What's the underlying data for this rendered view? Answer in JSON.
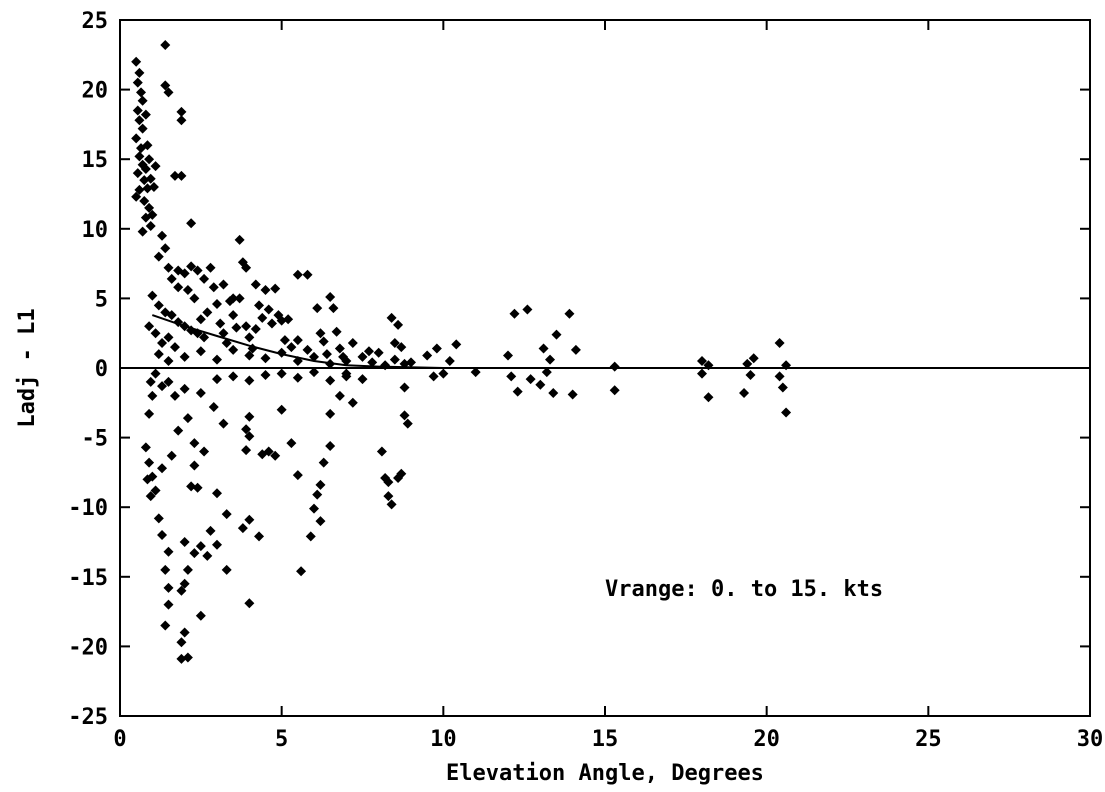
{
  "chart_data": {
    "type": "scatter",
    "title": "",
    "xlabel": "Elevation Angle, Degrees",
    "ylabel": "Ladj - L1",
    "xlim": [
      0,
      30
    ],
    "ylim": [
      -25,
      25
    ],
    "xticks": [
      0,
      5,
      10,
      15,
      20,
      25,
      30
    ],
    "yticks": [
      -25,
      -20,
      -15,
      -10,
      -5,
      0,
      5,
      10,
      15,
      20,
      25
    ],
    "grid": false,
    "annotation": "Vrange:  0. to 15. kts",
    "reference_line_y": 0,
    "trend_line": [
      [
        1.0,
        3.8
      ],
      [
        2.0,
        3.0
      ],
      [
        3.0,
        2.3
      ],
      [
        4.0,
        1.6
      ],
      [
        5.0,
        1.0
      ],
      [
        6.0,
        0.5
      ],
      [
        7.0,
        0.2
      ],
      [
        8.0,
        0.1
      ],
      [
        10.0,
        0.0
      ]
    ],
    "points": [
      [
        0.5,
        22.0
      ],
      [
        0.6,
        21.2
      ],
      [
        0.55,
        20.5
      ],
      [
        0.65,
        19.8
      ],
      [
        0.7,
        19.2
      ],
      [
        0.55,
        18.5
      ],
      [
        0.6,
        17.8
      ],
      [
        0.7,
        17.2
      ],
      [
        0.5,
        16.5
      ],
      [
        0.65,
        15.8
      ],
      [
        0.6,
        15.2
      ],
      [
        0.7,
        14.6
      ],
      [
        0.55,
        14.0
      ],
      [
        0.75,
        13.5
      ],
      [
        0.6,
        12.8
      ],
      [
        0.5,
        12.3
      ],
      [
        0.8,
        18.2
      ],
      [
        0.85,
        16.0
      ],
      [
        0.9,
        15.0
      ],
      [
        0.8,
        14.3
      ],
      [
        0.95,
        13.6
      ],
      [
        0.85,
        12.9
      ],
      [
        0.75,
        12.0
      ],
      [
        0.9,
        11.5
      ],
      [
        0.8,
        10.8
      ],
      [
        0.95,
        10.2
      ],
      [
        0.7,
        9.8
      ],
      [
        1.0,
        11.0
      ],
      [
        1.05,
        13.0
      ],
      [
        1.1,
        14.5
      ],
      [
        1.4,
        23.2
      ],
      [
        1.4,
        20.3
      ],
      [
        1.5,
        19.8
      ],
      [
        1.9,
        18.4
      ],
      [
        1.9,
        17.8
      ],
      [
        1.7,
        13.8
      ],
      [
        1.9,
        13.8
      ],
      [
        1.3,
        9.5
      ],
      [
        1.4,
        8.6
      ],
      [
        2.2,
        10.4
      ],
      [
        1.2,
        8.0
      ],
      [
        1.5,
        7.2
      ],
      [
        1.8,
        7.0
      ],
      [
        2.0,
        6.8
      ],
      [
        2.2,
        7.3
      ],
      [
        2.4,
        7.0
      ],
      [
        2.6,
        6.4
      ],
      [
        1.6,
        6.4
      ],
      [
        1.8,
        5.8
      ],
      [
        2.1,
        5.6
      ],
      [
        2.3,
        5.0
      ],
      [
        1.0,
        5.2
      ],
      [
        1.2,
        4.5
      ],
      [
        1.4,
        4.0
      ],
      [
        1.6,
        3.8
      ],
      [
        1.8,
        3.3
      ],
      [
        2.0,
        3.0
      ],
      [
        2.2,
        2.7
      ],
      [
        2.4,
        2.5
      ],
      [
        2.6,
        2.2
      ],
      [
        2.8,
        7.2
      ],
      [
        2.9,
        5.8
      ],
      [
        3.0,
        4.6
      ],
      [
        3.1,
        3.2
      ],
      [
        3.2,
        2.5
      ],
      [
        3.3,
        1.8
      ],
      [
        3.4,
        4.8
      ],
      [
        3.5,
        3.8
      ],
      [
        3.6,
        2.9
      ],
      [
        3.7,
        9.2
      ],
      [
        3.8,
        7.6
      ],
      [
        3.9,
        7.2
      ],
      [
        3.7,
        5.0
      ],
      [
        3.9,
        3.0
      ],
      [
        4.0,
        2.2
      ],
      [
        4.1,
        1.4
      ],
      [
        4.2,
        6.0
      ],
      [
        4.3,
        4.5
      ],
      [
        4.4,
        3.6
      ],
      [
        4.5,
        5.6
      ],
      [
        4.6,
        4.2
      ],
      [
        4.7,
        3.2
      ],
      [
        4.8,
        5.7
      ],
      [
        4.9,
        3.8
      ],
      [
        5.0,
        3.4
      ],
      [
        5.1,
        2.0
      ],
      [
        5.2,
        3.5
      ],
      [
        5.3,
        1.5
      ],
      [
        5.5,
        6.7
      ],
      [
        5.8,
        6.7
      ],
      [
        6.1,
        4.3
      ],
      [
        6.2,
        2.5
      ],
      [
        6.3,
        1.9
      ],
      [
        6.5,
        5.1
      ],
      [
        6.6,
        4.3
      ],
      [
        6.7,
        2.6
      ],
      [
        6.8,
        1.4
      ],
      [
        6.9,
        0.8
      ],
      [
        7.2,
        1.8
      ],
      [
        7.5,
        0.8
      ],
      [
        7.7,
        1.2
      ],
      [
        8.0,
        1.1
      ],
      [
        8.4,
        3.6
      ],
      [
        8.5,
        1.8
      ],
      [
        8.6,
        3.1
      ],
      [
        8.7,
        1.5
      ],
      [
        8.5,
        0.6
      ],
      [
        8.8,
        0.3
      ],
      [
        9.5,
        0.9
      ],
      [
        9.8,
        1.4
      ],
      [
        10.2,
        0.5
      ],
      [
        10.4,
        1.7
      ],
      [
        12.0,
        0.9
      ],
      [
        12.2,
        3.9
      ],
      [
        12.6,
        4.2
      ],
      [
        13.1,
        1.4
      ],
      [
        13.3,
        0.6
      ],
      [
        13.5,
        2.4
      ],
      [
        13.9,
        3.9
      ],
      [
        14.1,
        1.3
      ],
      [
        15.3,
        0.1
      ],
      [
        18.0,
        0.5
      ],
      [
        18.2,
        0.2
      ],
      [
        19.4,
        0.3
      ],
      [
        19.6,
        0.7
      ],
      [
        20.4,
        1.8
      ],
      [
        20.6,
        0.2
      ],
      [
        11.0,
        -0.3
      ],
      [
        12.1,
        -0.6
      ],
      [
        12.3,
        -1.7
      ],
      [
        12.7,
        -0.8
      ],
      [
        13.0,
        -1.2
      ],
      [
        13.2,
        -0.3
      ],
      [
        13.4,
        -1.8
      ],
      [
        14.0,
        -1.9
      ],
      [
        15.3,
        -1.6
      ],
      [
        18.0,
        -0.4
      ],
      [
        18.2,
        -2.1
      ],
      [
        19.3,
        -1.8
      ],
      [
        19.5,
        -0.5
      ],
      [
        20.4,
        -0.6
      ],
      [
        20.5,
        -1.4
      ],
      [
        20.6,
        -3.2
      ],
      [
        10.0,
        -0.4
      ],
      [
        9.7,
        -0.6
      ],
      [
        8.8,
        -1.4
      ],
      [
        8.8,
        -3.4
      ],
      [
        8.9,
        -4.0
      ],
      [
        8.7,
        -7.6
      ],
      [
        8.6,
        -7.9
      ],
      [
        8.1,
        -6.0
      ],
      [
        8.2,
        -7.9
      ],
      [
        8.3,
        -8.2
      ],
      [
        8.3,
        -9.2
      ],
      [
        8.4,
        -9.8
      ],
      [
        7.5,
        -0.8
      ],
      [
        7.2,
        -2.5
      ],
      [
        7.0,
        -0.6
      ],
      [
        6.8,
        -2.0
      ],
      [
        6.5,
        -3.3
      ],
      [
        6.5,
        -5.6
      ],
      [
        6.3,
        -6.8
      ],
      [
        6.2,
        -8.4
      ],
      [
        6.1,
        -9.1
      ],
      [
        6.0,
        -10.1
      ],
      [
        6.2,
        -11.0
      ],
      [
        5.9,
        -12.1
      ],
      [
        5.6,
        -14.6
      ],
      [
        5.5,
        -7.7
      ],
      [
        5.3,
        -5.4
      ],
      [
        5.0,
        -3.0
      ],
      [
        4.8,
        -6.3
      ],
      [
        4.6,
        -6.0
      ],
      [
        4.4,
        -6.2
      ],
      [
        4.3,
        -12.1
      ],
      [
        4.0,
        -3.5
      ],
      [
        3.9,
        -4.4
      ],
      [
        4.0,
        -4.9
      ],
      [
        3.9,
        -5.9
      ],
      [
        4.0,
        -10.9
      ],
      [
        3.8,
        -11.5
      ],
      [
        4.0,
        -16.9
      ],
      [
        3.3,
        -14.5
      ],
      [
        3.3,
        -10.5
      ],
      [
        3.0,
        -12.7
      ],
      [
        3.0,
        -9.0
      ],
      [
        2.8,
        -11.7
      ],
      [
        2.7,
        -13.5
      ],
      [
        2.5,
        -17.8
      ],
      [
        2.5,
        -12.8
      ],
      [
        2.4,
        -8.6
      ],
      [
        2.3,
        -5.4
      ],
      [
        2.3,
        -7.0
      ],
      [
        2.2,
        -8.5
      ],
      [
        2.3,
        -13.3
      ],
      [
        2.1,
        -14.5
      ],
      [
        2.0,
        -12.5
      ],
      [
        2.0,
        -15.5
      ],
      [
        1.9,
        -16.0
      ],
      [
        2.0,
        -19.0
      ],
      [
        1.9,
        -19.7
      ],
      [
        1.9,
        -20.9
      ],
      [
        2.1,
        -20.8
      ],
      [
        1.5,
        -17.0
      ],
      [
        1.4,
        -18.5
      ],
      [
        1.5,
        -15.8
      ],
      [
        1.4,
        -14.5
      ],
      [
        1.5,
        -13.2
      ],
      [
        1.3,
        -12.0
      ],
      [
        1.2,
        -10.8
      ],
      [
        1.1,
        -8.8
      ],
      [
        1.0,
        -7.8
      ],
      [
        0.95,
        -9.2
      ],
      [
        0.85,
        -8.0
      ],
      [
        0.9,
        -6.8
      ],
      [
        0.8,
        -5.7
      ],
      [
        0.9,
        -3.3
      ],
      [
        1.0,
        -2.0
      ],
      [
        0.95,
        -1.0
      ],
      [
        1.1,
        -0.4
      ],
      [
        1.3,
        -1.3
      ],
      [
        1.5,
        -1.0
      ],
      [
        1.7,
        -2.0
      ],
      [
        2.0,
        -1.5
      ],
      [
        2.5,
        -1.8
      ],
      [
        3.0,
        -0.8
      ],
      [
        3.5,
        -0.6
      ],
      [
        4.0,
        -0.9
      ],
      [
        4.5,
        -0.5
      ],
      [
        5.0,
        -0.4
      ],
      [
        5.5,
        -0.7
      ],
      [
        6.0,
        -0.3
      ],
      [
        6.5,
        -0.9
      ],
      [
        7.0,
        -0.4
      ],
      [
        1.2,
        1.0
      ],
      [
        1.5,
        0.5
      ],
      [
        2.0,
        0.8
      ],
      [
        2.5,
        1.2
      ],
      [
        3.0,
        0.6
      ],
      [
        3.5,
        1.3
      ],
      [
        4.0,
        0.9
      ],
      [
        4.5,
        0.7
      ],
      [
        5.0,
        1.1
      ],
      [
        5.5,
        0.5
      ],
      [
        6.0,
        0.8
      ],
      [
        6.5,
        0.3
      ],
      [
        7.0,
        0.5
      ],
      [
        7.8,
        0.4
      ],
      [
        8.2,
        0.2
      ],
      [
        9.0,
        0.4
      ],
      [
        0.9,
        3.0
      ],
      [
        1.1,
        2.5
      ],
      [
        1.3,
        1.8
      ],
      [
        1.5,
        2.2
      ],
      [
        1.7,
        1.5
      ],
      [
        2.5,
        3.5
      ],
      [
        2.7,
        4.0
      ],
      [
        3.2,
        6.0
      ],
      [
        3.5,
        5.0
      ],
      [
        4.2,
        2.8
      ],
      [
        5.5,
        2.0
      ],
      [
        5.8,
        1.3
      ],
      [
        6.4,
        1.0
      ],
      [
        2.9,
        -2.8
      ],
      [
        3.2,
        -4.0
      ],
      [
        1.8,
        -4.5
      ],
      [
        2.1,
        -3.6
      ],
      [
        1.6,
        -6.3
      ],
      [
        1.3,
        -7.2
      ],
      [
        2.6,
        -6.0
      ]
    ]
  }
}
